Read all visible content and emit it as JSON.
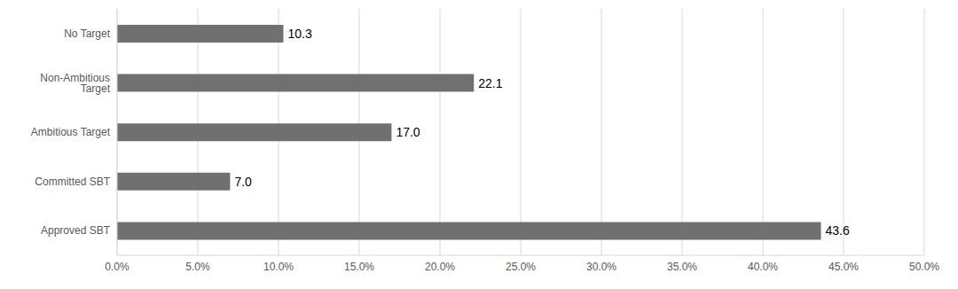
{
  "chart_data": {
    "type": "bar",
    "orientation": "horizontal",
    "categories": [
      "No Target",
      "Non-Ambitious Target",
      "Ambitious Target",
      "Committed SBT",
      "Approved SBT"
    ],
    "values": [
      10.3,
      22.1,
      17.0,
      7.0,
      43.6
    ],
    "value_labels": [
      "10.3",
      "22.1",
      "17.0",
      "7.0",
      "43.6"
    ],
    "data_labels": true,
    "color": "#707070",
    "xlim": [
      0,
      50
    ],
    "xticks": [
      {
        "value": 0,
        "label": "0.0%"
      },
      {
        "value": 5,
        "label": "5.0%"
      },
      {
        "value": 10,
        "label": "10.0%"
      },
      {
        "value": 15,
        "label": "15.0%"
      },
      {
        "value": 20,
        "label": "20.0%"
      },
      {
        "value": 25,
        "label": "25.0%"
      },
      {
        "value": 30,
        "label": "30.0%"
      },
      {
        "value": 35,
        "label": "35.0%"
      },
      {
        "value": 40,
        "label": "40.0%"
      },
      {
        "value": 45,
        "label": "45.0%"
      },
      {
        "value": 50,
        "label": "50.0%"
      }
    ],
    "grid": true
  }
}
